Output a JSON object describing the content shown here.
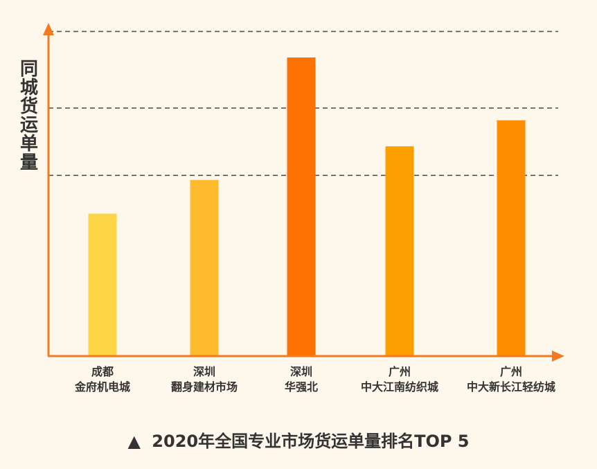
{
  "chart_data": {
    "type": "bar",
    "title": "",
    "ylabel": "同城货运单量",
    "xlabel": "",
    "categories": [
      [
        "成都",
        "金府机电城"
      ],
      [
        "深圳",
        "翻身建材市场"
      ],
      [
        "深圳",
        "华强北"
      ],
      [
        "广州",
        "中大江南纺织城"
      ],
      [
        "广州",
        "中大新长江轻纺城"
      ]
    ],
    "values": [
      46.5,
      57.5,
      97.5,
      68.5,
      77.0
    ],
    "ylim": [
      0,
      107
    ],
    "gridlines": [
      59,
      81,
      106
    ],
    "bar_colors": [
      "#FED547",
      "#FEBB2E",
      "#FE7103",
      "#FE9F01",
      "#FE8D00"
    ],
    "axis_color": "#F47A20",
    "grid": "dashed horizontal",
    "legend": "none"
  },
  "caption": {
    "marker": "▲",
    "text": "2020年全国专业市场货运单量排名TOP 5"
  }
}
